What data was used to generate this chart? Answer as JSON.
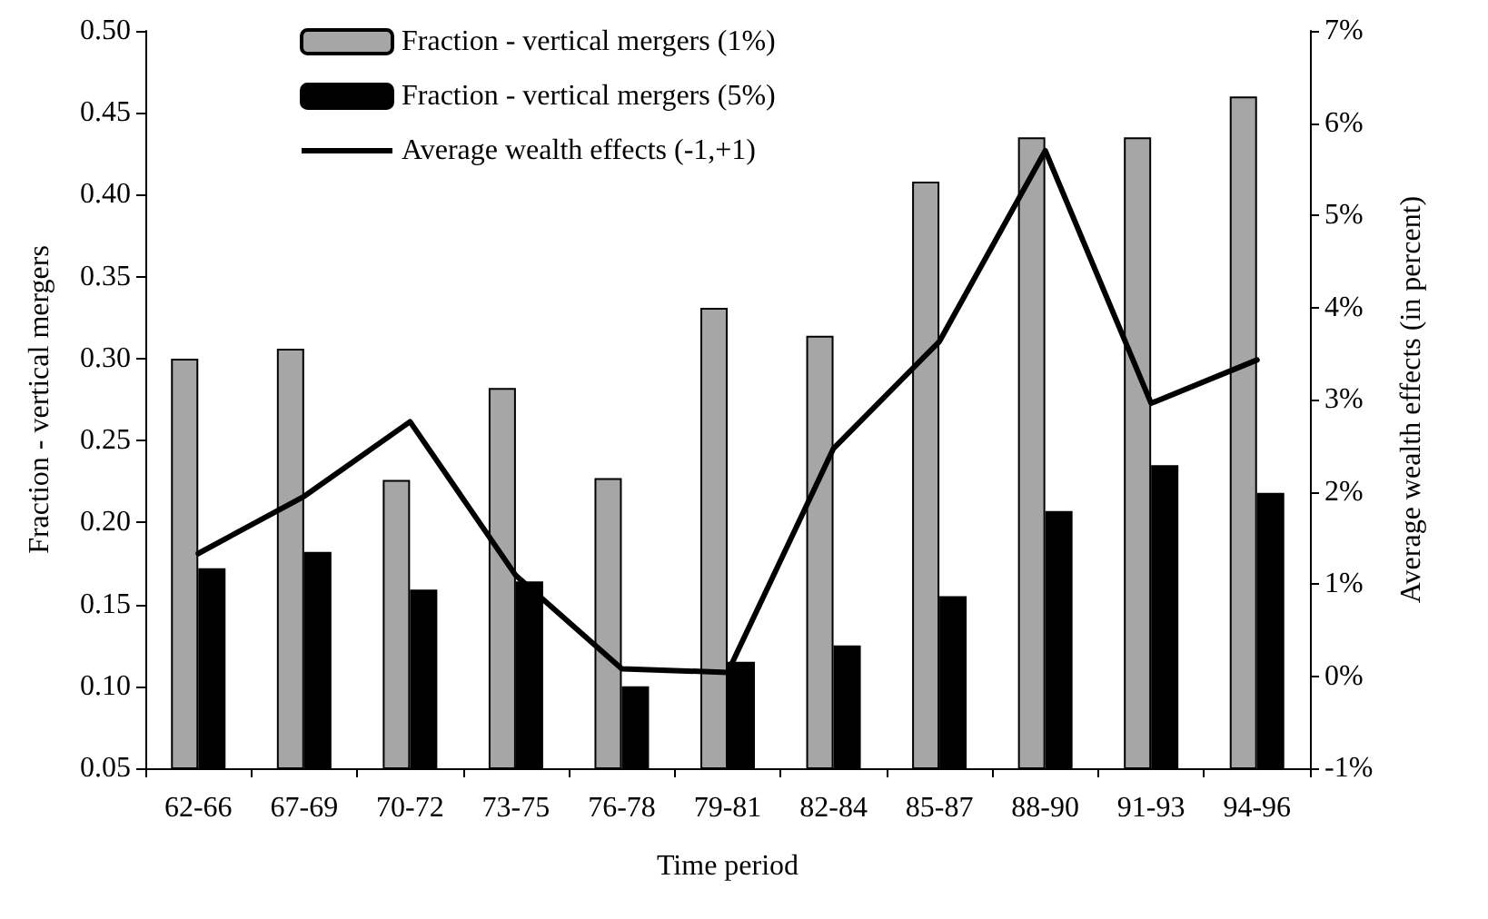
{
  "chart_data": {
    "type": "bar",
    "xlabel": "Time period",
    "ylabel": "Fraction - vertical mergers",
    "y2label": "Average wealth effects (in percent)",
    "categories": [
      "62-66",
      "67-69",
      "70-72",
      "73-75",
      "76-78",
      "79-81",
      "82-84",
      "85-87",
      "88-90",
      "91-93",
      "94-96"
    ],
    "series": [
      {
        "name": "Fraction - vertical mergers (1%)",
        "color": "#a6a6a6",
        "values": [
          0.3,
          0.306,
          0.226,
          0.282,
          0.227,
          0.331,
          0.314,
          0.408,
          0.435,
          0.435,
          0.46
        ]
      },
      {
        "name": "Fraction - vertical mergers (5%)",
        "color": "#000000",
        "values": [
          0.172,
          0.182,
          0.159,
          0.164,
          0.1,
          0.115,
          0.125,
          0.155,
          0.207,
          0.235,
          0.218
        ]
      },
      {
        "name": "Average wealth effects (-1,+1)",
        "type": "line",
        "axis": "y2",
        "color": "#000000",
        "values": [
          1.33,
          1.95,
          2.76,
          1.09,
          0.08,
          0.04,
          2.47,
          3.63,
          5.7,
          2.96,
          3.43
        ]
      }
    ],
    "ylim": [
      0.05,
      0.5
    ],
    "yticks": [
      {
        "value": 0.05,
        "label": "0.05"
      },
      {
        "value": 0.1,
        "label": "0.10"
      },
      {
        "value": 0.15,
        "label": "0.15"
      },
      {
        "value": 0.2,
        "label": "0.20"
      },
      {
        "value": 0.25,
        "label": "0.25"
      },
      {
        "value": 0.3,
        "label": "0.30"
      },
      {
        "value": 0.35,
        "label": "0.35"
      },
      {
        "value": 0.4,
        "label": "0.40"
      },
      {
        "value": 0.45,
        "label": "0.45"
      },
      {
        "value": 0.5,
        "label": "0.50"
      }
    ],
    "y2lim": [
      -1,
      7
    ],
    "y2ticks": [
      {
        "value": -1,
        "label": "-1%"
      },
      {
        "value": 0,
        "label": "0%"
      },
      {
        "value": 1,
        "label": "1%"
      },
      {
        "value": 2,
        "label": "2%"
      },
      {
        "value": 3,
        "label": "3%"
      },
      {
        "value": 4,
        "label": "4%"
      },
      {
        "value": 5,
        "label": "5%"
      },
      {
        "value": 6,
        "label": "6%"
      },
      {
        "value": 7,
        "label": "7%"
      }
    ],
    "legend": "top left",
    "grid": false,
    "marker": "none",
    "line_style": "solid"
  }
}
